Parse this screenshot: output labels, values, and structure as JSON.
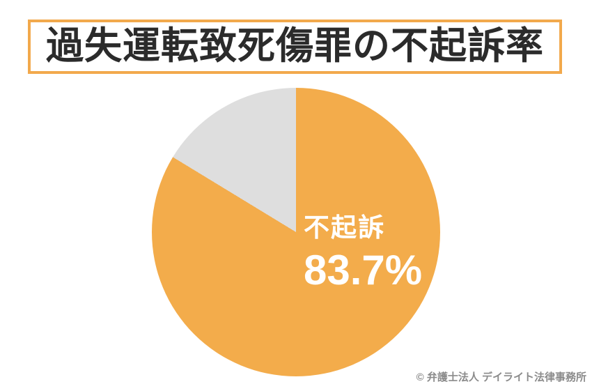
{
  "title": "過失運転致死傷罪の不起訴率",
  "copyright": "© 弁護士法人 デイライト法律事務所",
  "colors": {
    "accent_orange": "#F3AC4B",
    "slice_gray": "#DEDEDE",
    "title_border": "#F2A94C",
    "title_text": "#2B2B2B",
    "label_text": "#FFFFFF",
    "copyright_text": "#8B8B8B"
  },
  "chart_data": {
    "type": "pie",
    "title": "過失運転致死傷罪の不起訴率",
    "start_angle_deg": 0,
    "direction": "clockwise",
    "legend_position": "none",
    "slices": [
      {
        "label": "不起訴",
        "value": 83.7,
        "percent_display": "83.7%",
        "color": "#F3AC4B",
        "label_inside": true
      },
      {
        "label": "",
        "value": 16.3,
        "percent_display": "",
        "color": "#DEDEDE",
        "label_inside": false
      }
    ]
  }
}
